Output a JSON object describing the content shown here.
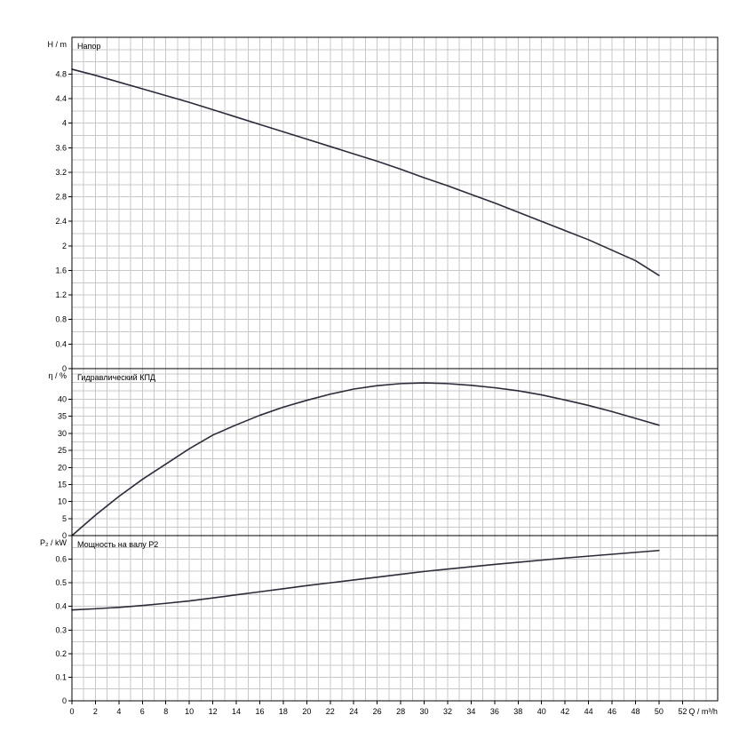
{
  "chart_data": {
    "type": "line",
    "x_unit_label": "Q / m³/h",
    "x_ticks": [
      0,
      2,
      4,
      6,
      8,
      10,
      12,
      14,
      16,
      18,
      20,
      22,
      24,
      26,
      28,
      30,
      32,
      34,
      36,
      38,
      40,
      42,
      44,
      46,
      48,
      50,
      52
    ],
    "xlim": [
      0,
      55
    ],
    "grid": true,
    "panels": [
      {
        "id": "head",
        "ylabel": "H / m",
        "title": "Напор",
        "ylim": [
          0,
          5.4
        ],
        "y_ticks": [
          0,
          0.4,
          0.8,
          1.2,
          1.6,
          2,
          2.4,
          2.8,
          3.2,
          3.6,
          4,
          4.4,
          4.8
        ],
        "y_tick_labels": [
          "0",
          "0.4",
          "0.8",
          "1.2",
          "1.6",
          "2",
          "2.4",
          "2.8",
          "3.2",
          "3.6",
          "4",
          "4.4",
          "4.8"
        ],
        "series": [
          {
            "x": [
              0,
              2,
              4,
              6,
              8,
              10,
              12,
              14,
              16,
              18,
              20,
              22,
              24,
              26,
              28,
              30,
              32,
              34,
              36,
              38,
              40,
              42,
              44,
              46,
              48,
              50
            ],
            "y": [
              4.88,
              4.78,
              4.67,
              4.56,
              4.45,
              4.34,
              4.22,
              4.1,
              3.98,
              3.86,
              3.74,
              3.62,
              3.5,
              3.38,
              3.25,
              3.11,
              2.98,
              2.84,
              2.7,
              2.55,
              2.4,
              2.25,
              2.1,
              1.93,
              1.76,
              1.52
            ]
          }
        ]
      },
      {
        "id": "efficiency",
        "ylabel": "η / %",
        "title": "Гидравлический КПД",
        "ylim": [
          0,
          49
        ],
        "y_ticks": [
          0,
          5,
          10,
          15,
          20,
          25,
          30,
          35,
          40
        ],
        "y_tick_labels": [
          "0",
          "5",
          "10",
          "15",
          "20",
          "25",
          "30",
          "35",
          "40"
        ],
        "series": [
          {
            "x": [
              0,
              2,
              4,
              6,
              8,
              10,
              12,
              14,
              16,
              18,
              20,
              22,
              24,
              26,
              28,
              30,
              32,
              34,
              36,
              38,
              40,
              42,
              44,
              46,
              48,
              50
            ],
            "y": [
              0,
              6,
              11.5,
              16.5,
              21,
              25.5,
              29.5,
              32.5,
              35.3,
              37.7,
              39.7,
              41.5,
              43,
              44,
              44.6,
              44.8,
              44.6,
              44.1,
              43.4,
              42.5,
              41.3,
              39.8,
              38.2,
              36.4,
              34.4,
              32.4
            ]
          }
        ]
      },
      {
        "id": "power",
        "ylabel": "P₂ / kW",
        "title": "Мощность на валу Р2",
        "ylim": [
          0,
          0.7
        ],
        "y_ticks": [
          0,
          0.1,
          0.2,
          0.3,
          0.4,
          0.5,
          0.6
        ],
        "y_tick_labels": [
          "0",
          "0.1",
          "0.2",
          "0.3",
          "0.4",
          "0.5",
          "0.6"
        ],
        "series": [
          {
            "x": [
              0,
              2,
              4,
              6,
              8,
              10,
              12,
              14,
              16,
              18,
              20,
              22,
              24,
              26,
              28,
              30,
              32,
              34,
              36,
              38,
              40,
              42,
              44,
              46,
              48,
              50
            ],
            "y": [
              0.385,
              0.39,
              0.396,
              0.404,
              0.413,
              0.423,
              0.436,
              0.449,
              0.462,
              0.475,
              0.488,
              0.5,
              0.512,
              0.524,
              0.536,
              0.548,
              0.558,
              0.568,
              0.578,
              0.587,
              0.596,
              0.605,
              0.613,
              0.621,
              0.629,
              0.637
            ]
          }
        ]
      }
    ]
  }
}
